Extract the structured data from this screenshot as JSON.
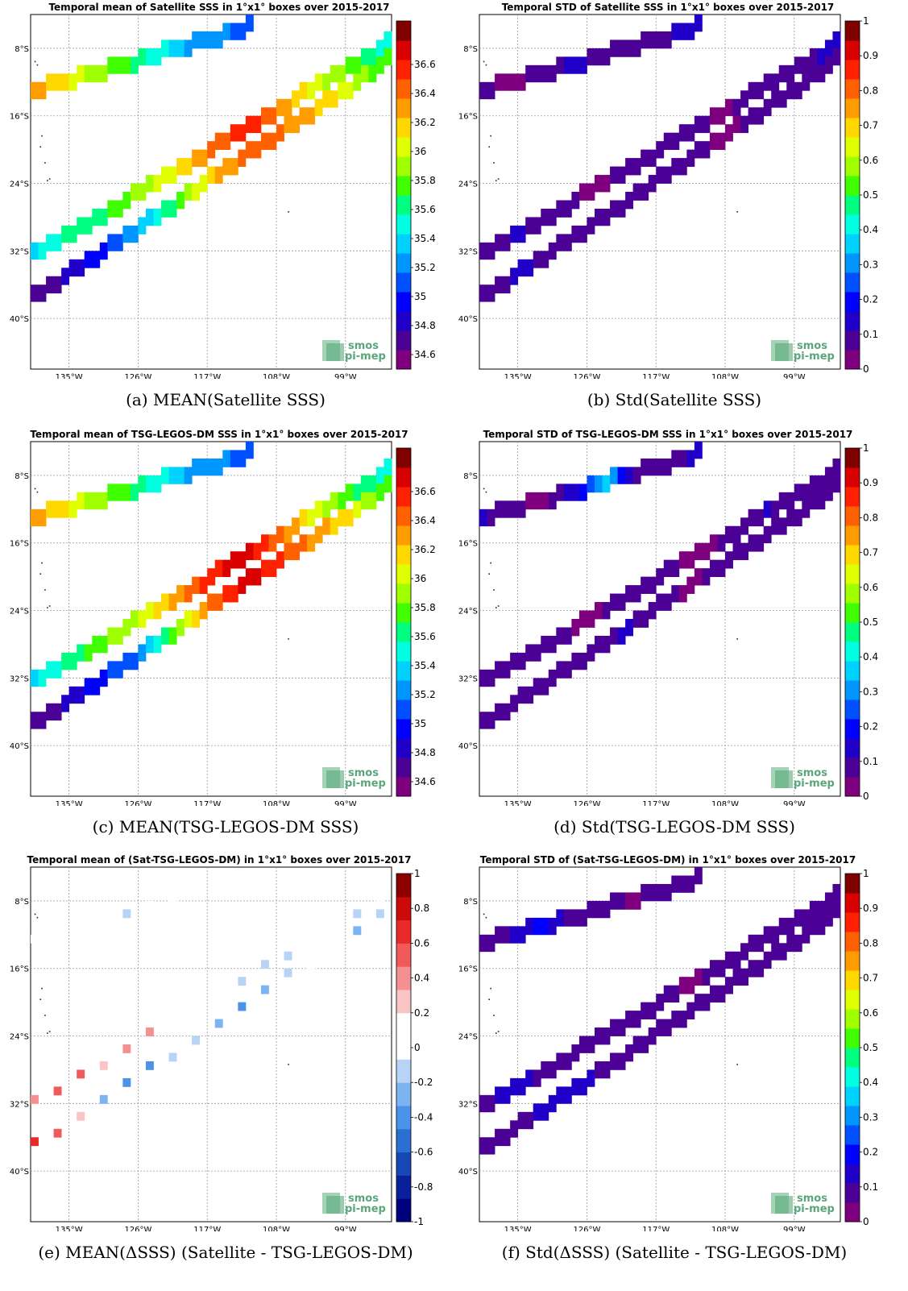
{
  "captions": {
    "a": "(a) MEAN(Satellite SSS)",
    "b": "(b) Std(Satellite SSS)",
    "c": "(c) MEAN(TSG-LEGOS-DM SSS)",
    "d": "(d) Std(TSG-LEGOS-DM SSS)",
    "e": "(e) MEAN(ΔSSS) (Satellite - TSG-LEGOS-DM)",
    "f": "(f) Std(ΔSSS) (Satellite - TSG-LEGOS-DM)"
  },
  "logo": {
    "line1": "smos",
    "line2": "pi-mep"
  },
  "chart_data": [
    {
      "id": "a",
      "type": "heatmap",
      "title": "Temporal mean of Satellite SSS in 1°x1° boxes over 2015-2017",
      "x_ticks": [
        "135°W",
        "126°W",
        "117°W",
        "108°W",
        "99°W"
      ],
      "y_ticks": [
        "8°S",
        "16°S",
        "24°S",
        "32°S",
        "40°S"
      ],
      "xlim": [
        -140,
        -93
      ],
      "ylim": [
        -46,
        -4
      ],
      "colormap": "jet",
      "clim": [
        34.5,
        36.9
      ],
      "colorbar_ticks": [
        36.6,
        36.4,
        36.2,
        36,
        35.8,
        35.6,
        35.4,
        35.2,
        35,
        34.8,
        34.6
      ],
      "colorbar_labels": [
        "36.6",
        "36.4",
        "36.2",
        "36",
        "35.8",
        "35.6",
        "35.4",
        "35.2",
        "35",
        "34.8",
        "34.6"
      ],
      "tracks": [
        {
          "lon0": -140,
          "lat0": -12.5,
          "lon1": -112,
          "lat1": -5,
          "values": [
            36.3,
            36.1,
            35.9,
            35.7,
            35.5,
            35.3,
            35.2,
            35.1
          ]
        },
        {
          "lon0": -140,
          "lat0": -32,
          "lon1": -94,
          "lat1": -7,
          "values": [
            35.4,
            35.6,
            35.7,
            35.9,
            36.1,
            36.4,
            36.6,
            36.3,
            36.0,
            35.8,
            35.5
          ]
        },
        {
          "lon0": -140,
          "lat0": -37,
          "lon1": -94,
          "lat1": -9,
          "values": [
            34.7,
            34.8,
            35.0,
            35.3,
            35.7,
            36.2,
            36.4,
            36.4,
            36.2,
            36.0,
            35.7
          ]
        }
      ]
    },
    {
      "id": "b",
      "type": "heatmap",
      "title": "Temporal STD of Satellite SSS in 1°x1° boxes over 2015-2017",
      "x_ticks": [
        "135°W",
        "126°W",
        "117°W",
        "108°W",
        "99°W"
      ],
      "y_ticks": [
        "8°S",
        "16°S",
        "24°S",
        "32°S",
        "40°S"
      ],
      "xlim": [
        -140,
        -93
      ],
      "ylim": [
        -46,
        -4
      ],
      "colormap": "jet",
      "clim": [
        0,
        1
      ],
      "colorbar_ticks": [
        1,
        0.9,
        0.8,
        0.7,
        0.6,
        0.5,
        0.4,
        0.3,
        0.2,
        0.1,
        0
      ],
      "colorbar_labels": [
        "1",
        "0.9",
        "0.8",
        "0.7",
        "0.6",
        "0.5",
        "0.4",
        "0.3",
        "0.2",
        "0.1",
        "0"
      ],
      "tracks": [
        {
          "lon0": -140,
          "lat0": -12.5,
          "lon1": -112,
          "lat1": -5,
          "values": [
            0.06,
            0.05,
            0.07,
            0.13,
            0.08,
            0.06,
            0.1,
            0.15
          ]
        },
        {
          "lon0": -140,
          "lat0": -32,
          "lon1": -94,
          "lat1": -7,
          "values": [
            0.06,
            0.12,
            0.07,
            0.05,
            0.06,
            0.08,
            0.06,
            0.05,
            0.09,
            0.07,
            0.16
          ]
        },
        {
          "lon0": -140,
          "lat0": -37,
          "lon1": -94,
          "lat1": -9,
          "values": [
            0.06,
            0.13,
            0.08,
            0.06,
            0.07,
            0.1,
            0.06,
            0.05,
            0.08,
            0.06,
            0.07
          ]
        }
      ]
    },
    {
      "id": "c",
      "type": "heatmap",
      "title": "Temporal mean of TSG-LEGOS-DM SSS in 1°x1° boxes over 2015-2017",
      "x_ticks": [
        "135°W",
        "126°W",
        "117°W",
        "108°W",
        "99°W"
      ],
      "y_ticks": [
        "8°S",
        "16°S",
        "24°S",
        "32°S",
        "40°S"
      ],
      "xlim": [
        -140,
        -93
      ],
      "ylim": [
        -46,
        -4
      ],
      "colormap": "jet",
      "clim": [
        34.5,
        36.9
      ],
      "colorbar_ticks": [
        36.6,
        36.4,
        36.2,
        36,
        35.8,
        35.6,
        35.4,
        35.2,
        35,
        34.8,
        34.6
      ],
      "colorbar_labels": [
        "36.6",
        "36.4",
        "36.2",
        "36",
        "35.8",
        "35.6",
        "35.4",
        "35.2",
        "35",
        "34.8",
        "34.6"
      ],
      "tracks": [
        {
          "lon0": -140,
          "lat0": -12.5,
          "lon1": -112,
          "lat1": -5,
          "values": [
            36.3,
            36.1,
            35.9,
            35.7,
            35.5,
            35.3,
            35.2,
            35.1
          ]
        },
        {
          "lon0": -140,
          "lat0": -32,
          "lon1": -94,
          "lat1": -7,
          "values": [
            35.4,
            35.6,
            35.8,
            36.0,
            36.3,
            36.6,
            36.7,
            36.4,
            36.0,
            35.7,
            35.5
          ]
        },
        {
          "lon0": -140,
          "lat0": -37,
          "lon1": -94,
          "lat1": -9,
          "values": [
            34.7,
            34.8,
            35.0,
            35.2,
            35.8,
            36.4,
            36.7,
            36.5,
            36.3,
            36.1,
            35.7
          ]
        }
      ]
    },
    {
      "id": "d",
      "type": "heatmap",
      "title": "Temporal STD of TSG-LEGOS-DM SSS in 1°x1° boxes over 2015-2017",
      "x_ticks": [
        "135°W",
        "126°W",
        "117°W",
        "108°W",
        "99°W"
      ],
      "y_ticks": [
        "8°S",
        "16°S",
        "24°S",
        "32°S",
        "40°S"
      ],
      "xlim": [
        -140,
        -93
      ],
      "ylim": [
        -46,
        -4
      ],
      "colormap": "jet",
      "clim": [
        0,
        1
      ],
      "colorbar_ticks": [
        1,
        0.9,
        0.8,
        0.7,
        0.6,
        0.5,
        0.4,
        0.3,
        0.2,
        0.1,
        0
      ],
      "colorbar_labels": [
        "1",
        "0.9",
        "0.8",
        "0.7",
        "0.6",
        "0.5",
        "0.4",
        "0.3",
        "0.2",
        "0.1",
        "0"
      ],
      "tracks": [
        {
          "lon0": -140,
          "lat0": -12.5,
          "lon1": -112,
          "lat1": -5,
          "values": [
            0.12,
            0.06,
            0.05,
            0.15,
            0.35,
            0.07,
            0.06,
            0.14
          ]
        },
        {
          "lon0": -140,
          "lat0": -32,
          "lon1": -94,
          "lat1": -7,
          "values": [
            0.06,
            0.08,
            0.06,
            0.05,
            0.07,
            0.06,
            0.05,
            0.06,
            0.12,
            0.07,
            0.08
          ]
        },
        {
          "lon0": -140,
          "lat0": -37,
          "lon1": -94,
          "lat1": -9,
          "values": [
            0.06,
            0.1,
            0.07,
            0.06,
            0.13,
            0.06,
            0.05,
            0.07,
            0.06,
            0.08,
            0.07
          ]
        }
      ]
    },
    {
      "id": "e",
      "type": "heatmap",
      "title": "Temporal mean of (Sat-TSG-LEGOS-DM) in 1°x1° boxes over 2015-2017",
      "x_ticks": [
        "135°W",
        "126°W",
        "117°W",
        "108°W",
        "99°W"
      ],
      "y_ticks": [
        "8°S",
        "16°S",
        "24°S",
        "32°S",
        "40°S"
      ],
      "xlim": [
        -140,
        -93
      ],
      "ylim": [
        -46,
        -4
      ],
      "colormap": "diverging blue-white-red",
      "clim": [
        -1,
        1
      ],
      "colorbar_ticks": [
        1,
        0.8,
        0.6,
        0.4,
        0.2,
        0,
        -0.2,
        -0.4,
        -0.6,
        -0.8,
        -1
      ],
      "colorbar_labels": [
        "1",
        "0.8",
        "0.6",
        "0.4",
        "0.2",
        "0",
        "-0.2",
        "-0.4",
        "-0.6",
        "-0.8",
        "-1"
      ],
      "tracks": [
        {
          "lon0": -140,
          "lat0": -12.5,
          "lon1": -112,
          "lat1": -5,
          "values": [
            0.15,
            0,
            0.15,
            -0.15,
            0.15,
            0.15,
            0,
            0.15
          ],
          "sparse": true
        },
        {
          "lon0": -140,
          "lat0": -32,
          "lon1": -94,
          "lat1": -7,
          "values": [
            0.35,
            0.7,
            0.3,
            0.5,
            0.15,
            0.2,
            -0.2,
            -0.15,
            0.15,
            -0.15,
            0.15
          ],
          "sparse": true
        },
        {
          "lon0": -140,
          "lat0": -37,
          "lon1": -94,
          "lat1": -9,
          "values": [
            0.7,
            0.4,
            -0.25,
            -0.5,
            -0.15,
            -0.15,
            -0.4,
            -0.2,
            0.15,
            -0.25,
            -0.15
          ],
          "sparse": true
        }
      ]
    },
    {
      "id": "f",
      "type": "heatmap",
      "title": "Temporal STD of (Sat-TSG-LEGOS-DM) in 1°x1° boxes over 2015-2017",
      "x_ticks": [
        "135°W",
        "126°W",
        "117°W",
        "108°W",
        "99°W"
      ],
      "y_ticks": [
        "8°S",
        "16°S",
        "24°S",
        "32°S",
        "40°S"
      ],
      "xlim": [
        -140,
        -93
      ],
      "ylim": [
        -46,
        -4
      ],
      "colormap": "jet",
      "clim": [
        0,
        1
      ],
      "colorbar_ticks": [
        1,
        0.9,
        0.8,
        0.7,
        0.6,
        0.5,
        0.4,
        0.3,
        0.2,
        0.1,
        0
      ],
      "colorbar_labels": [
        "1",
        "0.9",
        "0.8",
        "0.7",
        "0.6",
        "0.5",
        "0.4",
        "0.3",
        "0.2",
        "0.1",
        "0"
      ],
      "tracks": [
        {
          "lon0": -140,
          "lat0": -12.5,
          "lon1": -112,
          "lat1": -5,
          "values": [
            0.06,
            0.12,
            0.2,
            0.06,
            0.07,
            0.05,
            0.1,
            0.06
          ]
        },
        {
          "lon0": -140,
          "lat0": -32,
          "lon1": -94,
          "lat1": -7,
          "values": [
            0.1,
            0.15,
            0.07,
            0.06,
            0.08,
            0.06,
            0.05,
            0.07,
            0.06,
            0.06,
            0.08
          ]
        },
        {
          "lon0": -140,
          "lat0": -37,
          "lon1": -94,
          "lat1": -9,
          "values": [
            0.07,
            0.08,
            0.15,
            0.12,
            0.06,
            0.07,
            0.09,
            0.06,
            0.07,
            0.07,
            0.06
          ]
        }
      ]
    }
  ]
}
